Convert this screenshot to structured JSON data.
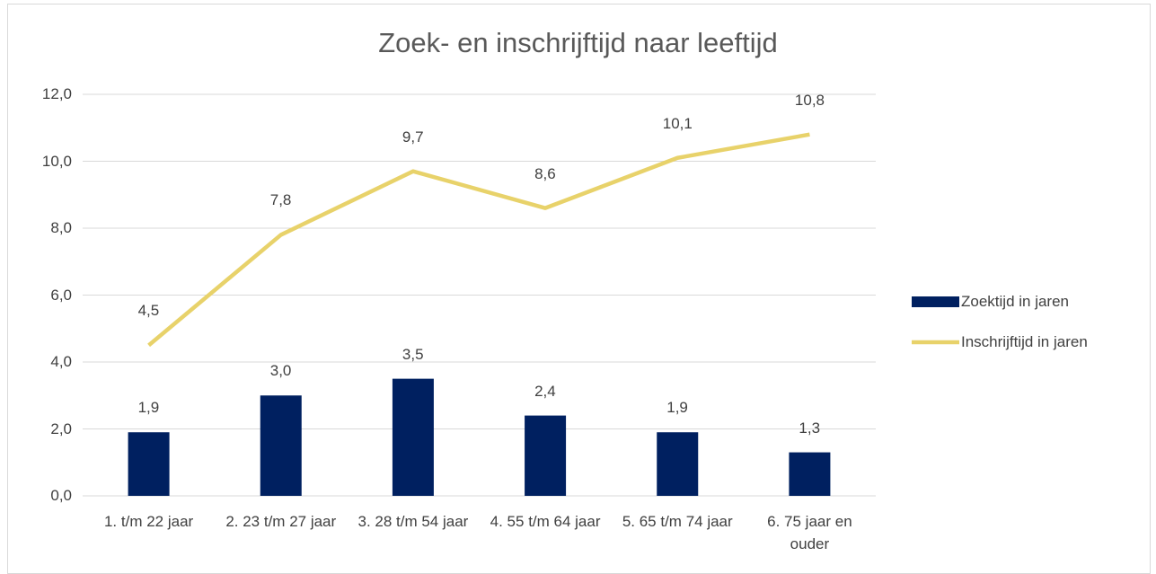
{
  "chart_data": {
    "type": "bar-line",
    "title": "Zoek- en inschrijftijd naar leeftijd",
    "categories": [
      "1. t/m 22 jaar",
      "2. 23 t/m 27 jaar",
      "3. 28 t/m 54 jaar",
      "4. 55 t/m 64 jaar",
      "5. 65 t/m 74 jaar",
      "6. 75 jaar en ouder"
    ],
    "series": [
      {
        "name": "Zoektijd in jaren",
        "type": "bar",
        "color": "#002060",
        "values": [
          1.9,
          3.0,
          3.5,
          2.4,
          1.9,
          1.3
        ],
        "value_labels": [
          "1,9",
          "3,0",
          "3,5",
          "2,4",
          "1,9",
          "1,3"
        ]
      },
      {
        "name": "Inschrijftijd in jaren",
        "type": "line",
        "color": "#e8d26a",
        "values": [
          4.5,
          7.8,
          9.7,
          8.6,
          10.1,
          10.8
        ],
        "value_labels": [
          "4,5",
          "7,8",
          "9,7",
          "8,6",
          "10,1",
          "10,8"
        ]
      }
    ],
    "ylim": [
      0,
      12
    ],
    "yticks": [
      {
        "value": 0,
        "label": "0,0"
      },
      {
        "value": 2,
        "label": "2,0"
      },
      {
        "value": 4,
        "label": "4,0"
      },
      {
        "value": 6,
        "label": "6,0"
      },
      {
        "value": 8,
        "label": "8,0"
      },
      {
        "value": 10,
        "label": "10,0"
      },
      {
        "value": 12,
        "label": "12,0"
      }
    ],
    "grid": true,
    "legend": "right"
  }
}
